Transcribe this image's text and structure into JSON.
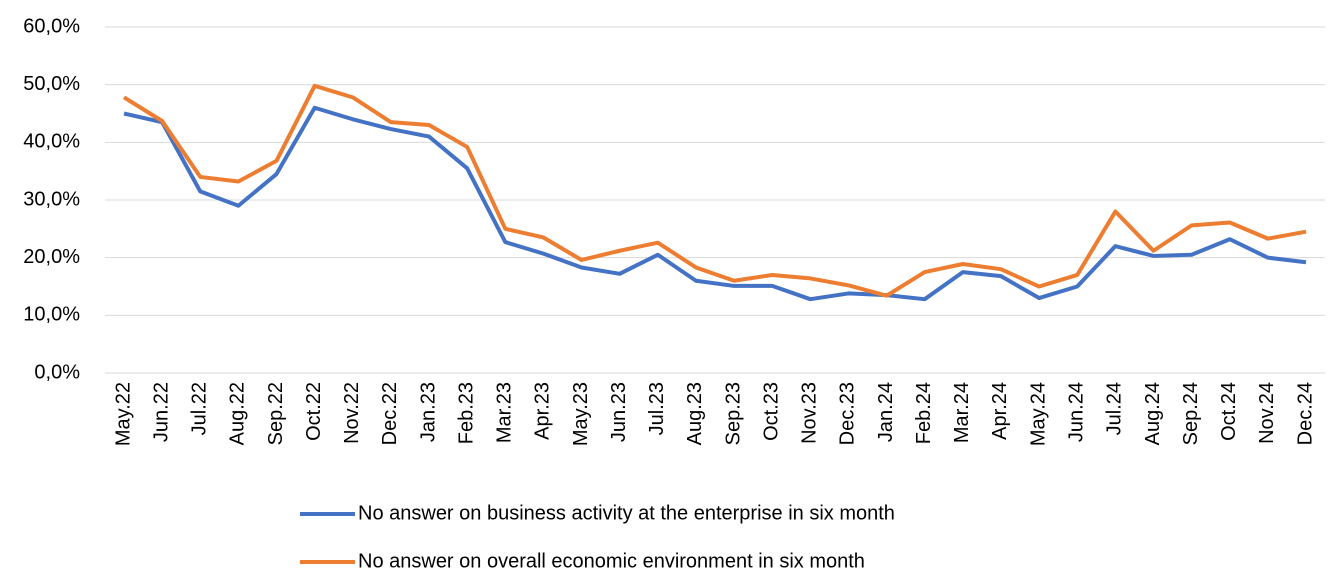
{
  "chart_data": {
    "type": "line",
    "categories": [
      "May.22",
      "Jun.22",
      "Jul.22",
      "Aug.22",
      "Sep.22",
      "Oct.22",
      "Nov.22",
      "Dec.22",
      "Jan.23",
      "Feb.23",
      "Mar.23",
      "Apr.23",
      "May.23",
      "Jun.23",
      "Jul.23",
      "Aug.23",
      "Sep.23",
      "Oct.23",
      "Nov.23",
      "Dec.23",
      "Jan.24",
      "Feb.24",
      "Mar.24",
      "Apr.24",
      "May.24",
      "Jun.24",
      "Jul.24",
      "Aug.24",
      "Sep.24",
      "Oct.24",
      "Nov.24",
      "Dec.24"
    ],
    "series": [
      {
        "name": "No answer on business activity at the enterprise in six month",
        "color": "#4472c4",
        "values": [
          45,
          43.5,
          31.5,
          29,
          34.5,
          46,
          44,
          42.3,
          41,
          35.5,
          22.7,
          20.7,
          18.3,
          17.2,
          20.5,
          16,
          15.1,
          15.1,
          12.8,
          13.8,
          13.5,
          12.8,
          17.5,
          16.8,
          13,
          15,
          22,
          20.3,
          20.5,
          23.2,
          20,
          19.2
        ]
      },
      {
        "name": "No answer on overall economic environment in six month",
        "color": "#ed7d31",
        "values": [
          47.8,
          43.7,
          34,
          33.2,
          36.8,
          49.8,
          47.8,
          43.5,
          43,
          39.2,
          25,
          23.5,
          19.6,
          21.2,
          22.6,
          18.3,
          16,
          17,
          16.4,
          15.2,
          13.4,
          17.5,
          18.9,
          18,
          15,
          17,
          28,
          21.2,
          25.6,
          26.1,
          23.3,
          24.5
        ]
      }
    ],
    "ylim": [
      0,
      60
    ],
    "yticks": [
      {
        "value": 0,
        "label": "0,0%"
      },
      {
        "value": 10,
        "label": "10,0%"
      },
      {
        "value": 20,
        "label": "20,0%"
      },
      {
        "value": 30,
        "label": "30,0%"
      },
      {
        "value": 40,
        "label": "40,0%"
      },
      {
        "value": 50,
        "label": "50,0%"
      },
      {
        "value": 60,
        "label": "60,0%"
      }
    ],
    "grid": true,
    "legend": "bottom"
  }
}
